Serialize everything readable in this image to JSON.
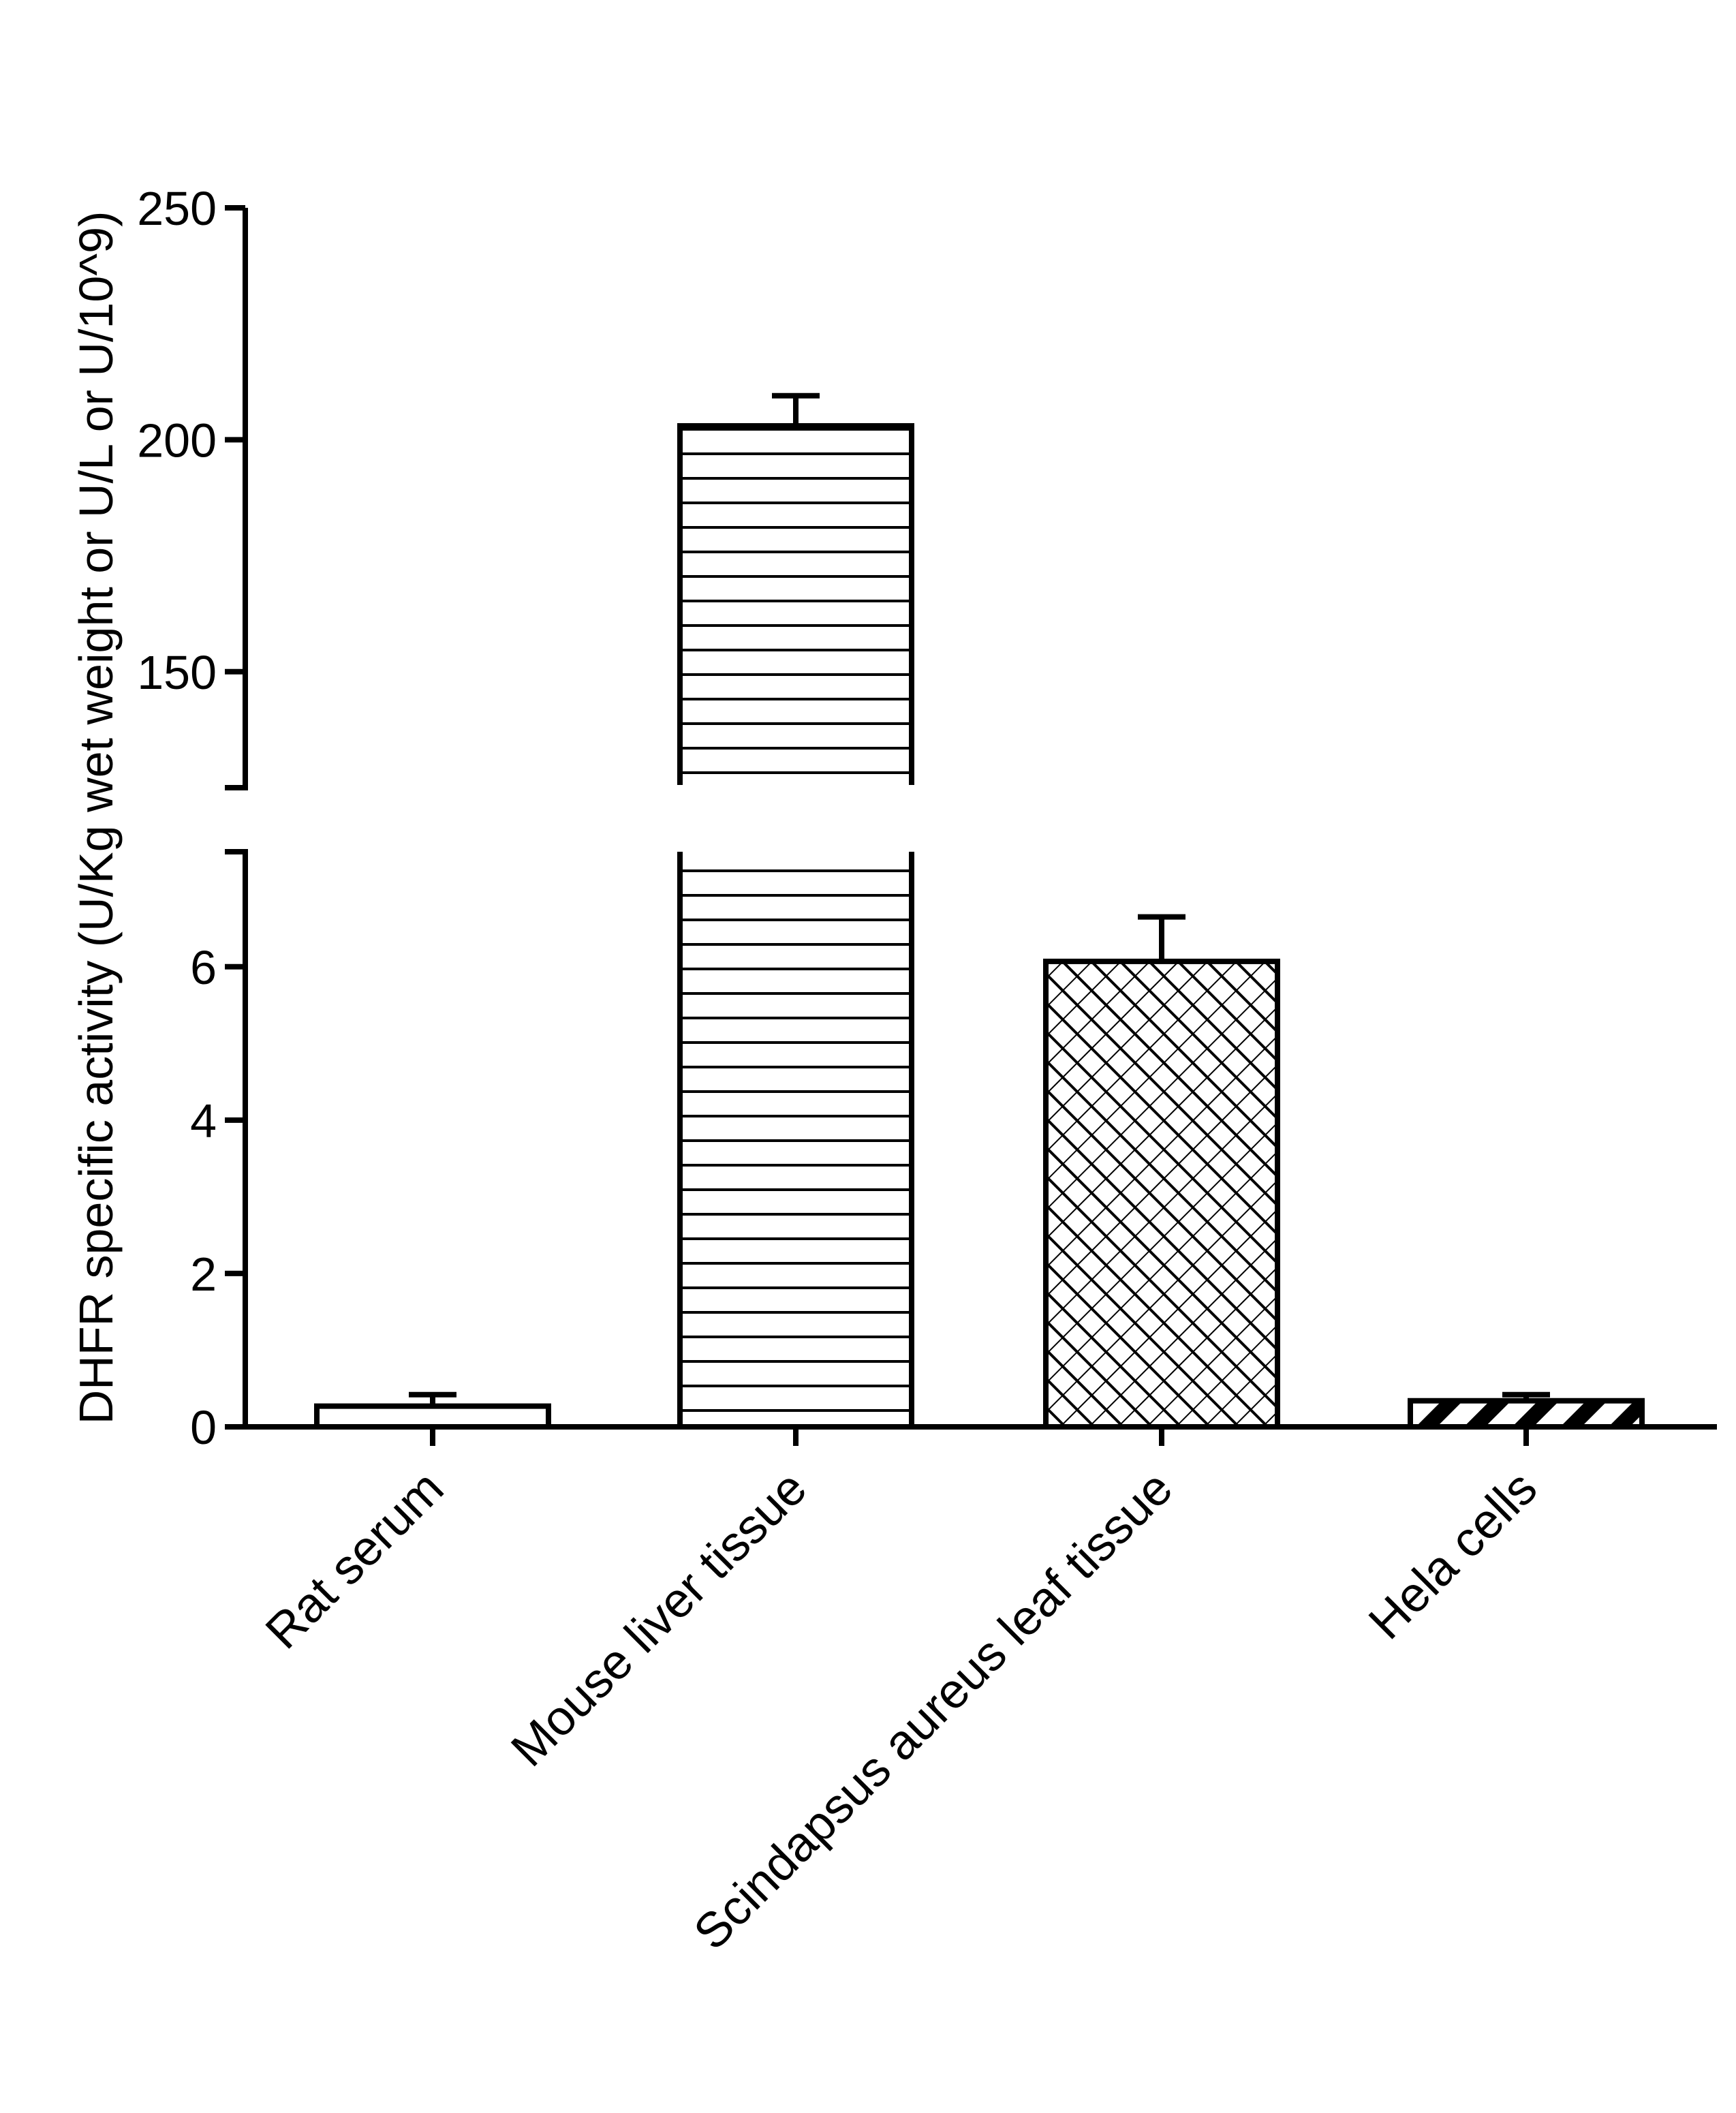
{
  "chart_data": {
    "type": "bar",
    "title": "",
    "xlabel": "",
    "ylabel": "DHFR specific activity (U/Kg wet weight or U/L or U/10^9)",
    "categories": [
      "Rat serum",
      "Mouse liver tissue",
      "Scindapsus aureus leaf tissue",
      "Hela cells"
    ],
    "values": [
      0.27,
      203,
      6.07,
      0.34
    ],
    "errors": [
      0.15,
      6.5,
      0.58,
      0.08
    ],
    "patterns": [
      "none",
      "horizontal-lines",
      "crosshatch-diagonal",
      "diagonal-stripes"
    ],
    "axis_break": {
      "lower_range": [
        0,
        7.5
      ],
      "upper_range": [
        125,
        250
      ]
    },
    "y_ticks_lower": [
      0,
      2,
      4,
      6
    ],
    "y_ticks_lower_labels": [
      "0",
      "2",
      "4",
      "6"
    ],
    "y_ticks_upper": [
      150,
      200,
      250
    ],
    "y_ticks_upper_labels": [
      "150",
      "200",
      "250"
    ],
    "grid": false,
    "legend": "none",
    "colors": {
      "stroke": "#000000",
      "fill": "#ffffff"
    }
  }
}
